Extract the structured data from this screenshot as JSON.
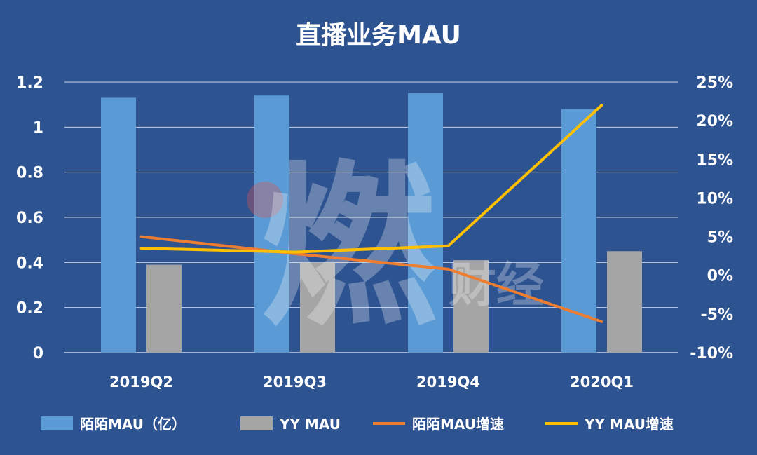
{
  "watermark": {
    "main": "燃",
    "sub": "财经"
  },
  "chart_data": {
    "type": "bar",
    "title": "直播业务MAU",
    "categories": [
      "2019Q2",
      "2019Q3",
      "2019Q4",
      "2020Q1"
    ],
    "y_left": {
      "lim": [
        0,
        1.2
      ],
      "ticks": [
        "0",
        "0.2",
        "0.4",
        "0.6",
        "0.8",
        "1",
        "1.2"
      ]
    },
    "y_right": {
      "lim": [
        -10,
        25
      ],
      "ticks": [
        "-10%",
        "-5%",
        "0%",
        "5%",
        "10%",
        "15%",
        "20%",
        "25%"
      ]
    },
    "grid": true,
    "legend_position": "bottom",
    "series": [
      {
        "name": "陌陌MAU（亿）",
        "kind": "bar",
        "axis": "left",
        "color": "#5b9bd5",
        "values": [
          1.13,
          1.14,
          1.15,
          1.08
        ]
      },
      {
        "name": "YY MAU",
        "kind": "bar",
        "axis": "left",
        "color": "#a5a5a5",
        "values": [
          0.39,
          0.4,
          0.41,
          0.45
        ]
      },
      {
        "name": "陌陌MAU增速",
        "kind": "line",
        "axis": "right",
        "color": "#ed7d31",
        "values": [
          5.0,
          2.8,
          0.8,
          -6.0
        ]
      },
      {
        "name": "YY MAU增速",
        "kind": "line",
        "axis": "right",
        "color": "#ffc000",
        "values": [
          3.5,
          3.0,
          3.8,
          22.0
        ]
      }
    ]
  }
}
